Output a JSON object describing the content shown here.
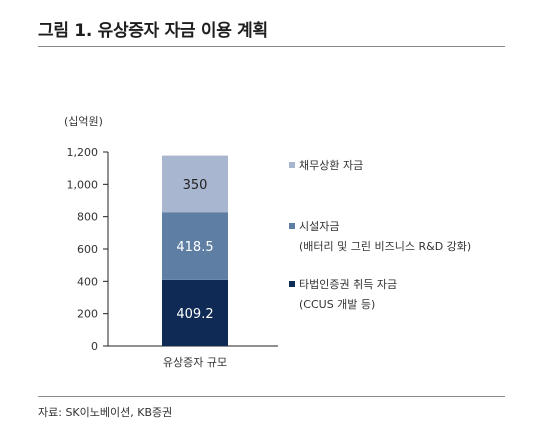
{
  "title": "그림 1. 유상증자 자금 이용 계획",
  "source": "자료: SK이노베이션, KB증권",
  "chart_data": {
    "type": "bar",
    "stacked": true,
    "unit_label": "(십억원)",
    "categories": [
      "유상증자 규모"
    ],
    "ylim": [
      0,
      1200
    ],
    "y_ticks": [
      0,
      200,
      400,
      600,
      800,
      1000,
      1200
    ],
    "y_tick_labels": [
      "0",
      "200",
      "400",
      "600",
      "800",
      "1,000",
      "1,200"
    ],
    "series": [
      {
        "name": "타법인증권 취득 자금",
        "sublabel": "(CCUS 개발 등)",
        "values": [
          409.2
        ],
        "label": "409.2",
        "color": "#0f2a55"
      },
      {
        "name": "시설자금",
        "sublabel": "(배터리 및 그린 비즈니스 R&D 강화)",
        "values": [
          418.5
        ],
        "label": "418.5",
        "color": "#5f7ea4"
      },
      {
        "name": "채무상환 자금",
        "sublabel": "",
        "values": [
          350
        ],
        "label": "350",
        "color": "#a8b6cf"
      }
    ],
    "legend_order": [
      2,
      1,
      0
    ],
    "grid": false,
    "legend_position": "right"
  }
}
